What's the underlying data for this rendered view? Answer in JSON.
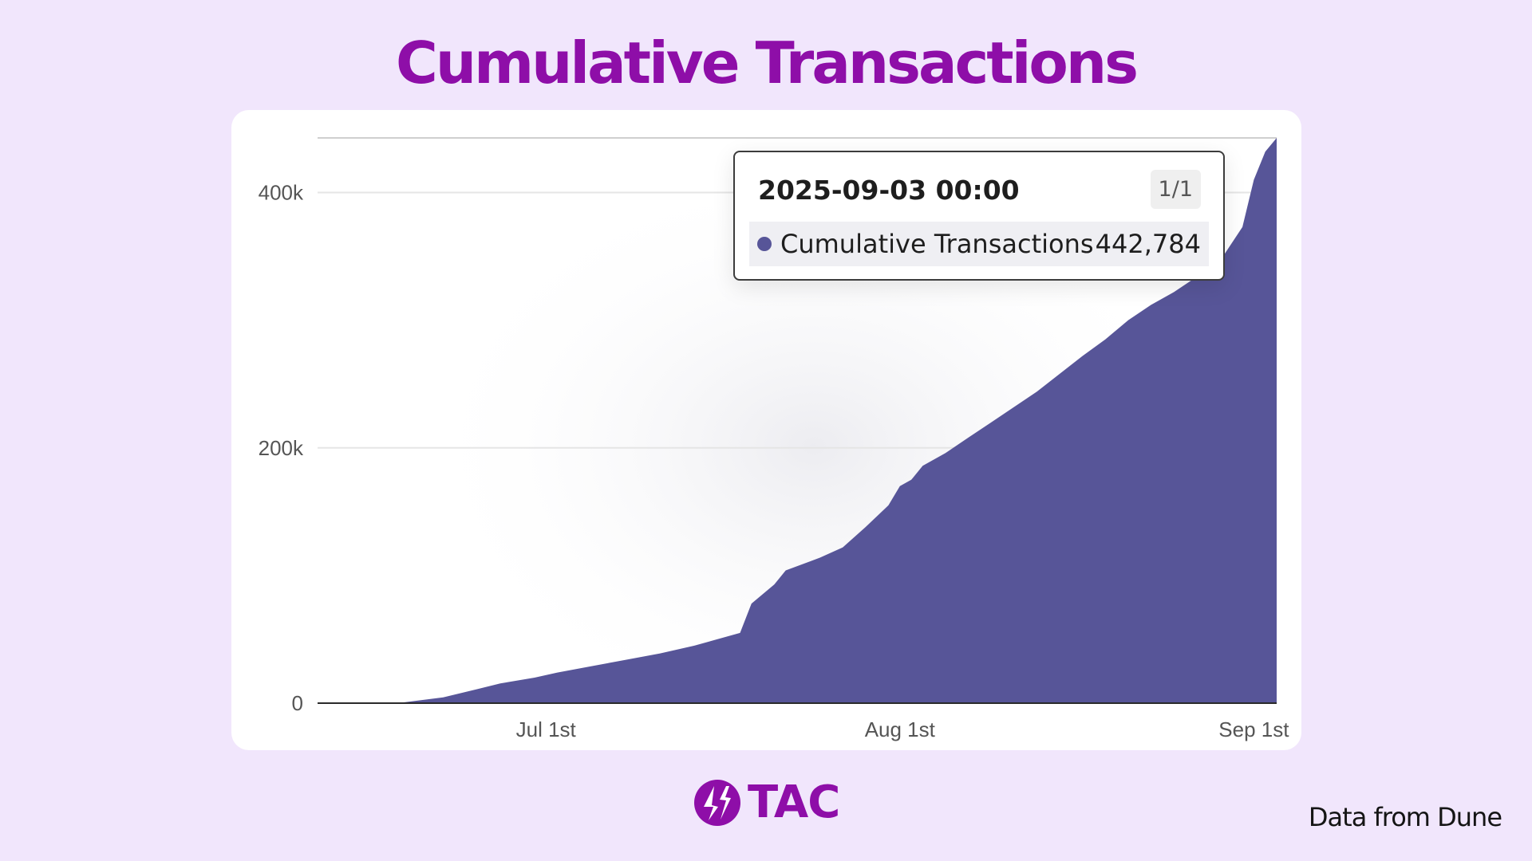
{
  "title": "Cumulative Transactions",
  "colors": {
    "title": "#8e0ea8",
    "area_fill": "#575598",
    "background": "#f1e6fc",
    "card": "#ffffff",
    "gridline": "#e5e5e5",
    "axis": "#2a2a2a",
    "tick_text": "#555555",
    "brand": "#8e0ea8"
  },
  "tooltip": {
    "date": "2025-09-03 00:00",
    "page": "1/1",
    "series_name": "Cumulative Transactions",
    "value": "442,784"
  },
  "brand": {
    "logo_icon": "tac-bolt-logo-icon",
    "name": "TAC"
  },
  "footer": {
    "source_note": "Data from Dune"
  },
  "chart_data": {
    "type": "area",
    "title": "Cumulative Transactions",
    "xlabel": "",
    "ylabel": "",
    "x_axis": "date",
    "x_ticks": [
      {
        "date": "2025-07-01",
        "label": "Jul 1st"
      },
      {
        "date": "2025-08-01",
        "label": "Aug 1st"
      },
      {
        "date": "2025-09-01",
        "label": "Sep 1st"
      }
    ],
    "y_ticks": [
      {
        "value": 0,
        "label": "0"
      },
      {
        "value": 200000,
        "label": "200k"
      },
      {
        "value": 400000,
        "label": "400k"
      }
    ],
    "xlim": [
      "2025-06-11",
      "2025-09-03"
    ],
    "ylim": [
      0,
      442784
    ],
    "grid": "horizontal",
    "legend": "none",
    "series": [
      {
        "name": "Cumulative Transactions",
        "points": [
          {
            "x": "2025-06-11",
            "y": 0
          },
          {
            "x": "2025-06-18",
            "y": 0
          },
          {
            "x": "2025-06-22",
            "y": 4500
          },
          {
            "x": "2025-06-25",
            "y": 11000
          },
          {
            "x": "2025-06-27",
            "y": 15500
          },
          {
            "x": "2025-06-30",
            "y": 20000
          },
          {
            "x": "2025-07-02",
            "y": 24000
          },
          {
            "x": "2025-07-05",
            "y": 29000
          },
          {
            "x": "2025-07-08",
            "y": 34000
          },
          {
            "x": "2025-07-11",
            "y": 39000
          },
          {
            "x": "2025-07-14",
            "y": 45000
          },
          {
            "x": "2025-07-16",
            "y": 50000
          },
          {
            "x": "2025-07-18",
            "y": 55000
          },
          {
            "x": "2025-07-19",
            "y": 78000
          },
          {
            "x": "2025-07-21",
            "y": 93000
          },
          {
            "x": "2025-07-22",
            "y": 104000
          },
          {
            "x": "2025-07-25",
            "y": 114000
          },
          {
            "x": "2025-07-27",
            "y": 122000
          },
          {
            "x": "2025-07-29",
            "y": 138000
          },
          {
            "x": "2025-07-31",
            "y": 155000
          },
          {
            "x": "2025-08-01",
            "y": 170000
          },
          {
            "x": "2025-08-02",
            "y": 175000
          },
          {
            "x": "2025-08-03",
            "y": 186000
          },
          {
            "x": "2025-08-05",
            "y": 196000
          },
          {
            "x": "2025-08-07",
            "y": 208000
          },
          {
            "x": "2025-08-09",
            "y": 220000
          },
          {
            "x": "2025-08-11",
            "y": 232000
          },
          {
            "x": "2025-08-13",
            "y": 244000
          },
          {
            "x": "2025-08-15",
            "y": 258000
          },
          {
            "x": "2025-08-17",
            "y": 272000
          },
          {
            "x": "2025-08-19",
            "y": 285000
          },
          {
            "x": "2025-08-21",
            "y": 300000
          },
          {
            "x": "2025-08-23",
            "y": 312000
          },
          {
            "x": "2025-08-25",
            "y": 322000
          },
          {
            "x": "2025-08-27",
            "y": 334000
          },
          {
            "x": "2025-08-29",
            "y": 346000
          },
          {
            "x": "2025-08-31",
            "y": 373000
          },
          {
            "x": "2025-09-01",
            "y": 410000
          },
          {
            "x": "2025-09-02",
            "y": 432000
          },
          {
            "x": "2025-09-03",
            "y": 442784
          }
        ]
      }
    ]
  }
}
